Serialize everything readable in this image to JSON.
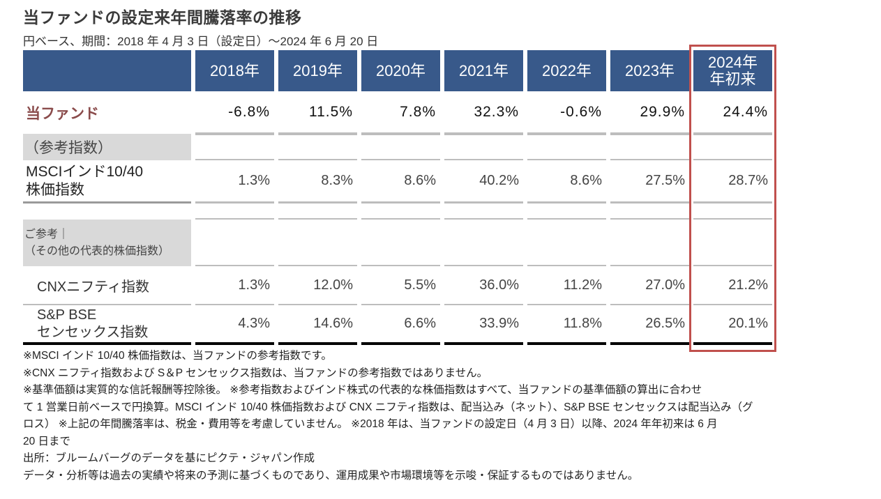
{
  "title": "当ファンドの設定来年間騰落率の推移",
  "subtitle": "円ベース、期間：2018 年 4 月 3 日（設定日）～2024 年 6 月 20 日",
  "table": {
    "columns": [
      "2018年",
      "2019年",
      "2020年",
      "2021年",
      "2022年",
      "2023年",
      "2024年\n年初来"
    ],
    "column_lines": [
      [
        "2018年"
      ],
      [
        "2019年"
      ],
      [
        "2020年"
      ],
      [
        "2021年"
      ],
      [
        "2022年"
      ],
      [
        "2023年"
      ],
      [
        "2024年",
        "年初来"
      ]
    ],
    "fund": {
      "label": "当ファンド",
      "values": [
        "-6.8%",
        "11.5%",
        "7.8%",
        "32.3%",
        "-0.6%",
        "29.9%",
        "24.4%"
      ]
    },
    "reference_section_label": "（参考指数）",
    "msci": {
      "label_lines": [
        "MSCIインド10/40",
        "株価指数"
      ],
      "values": [
        "1.3%",
        "8.3%",
        "8.6%",
        "40.2%",
        "8.6%",
        "27.5%",
        "28.7%"
      ]
    },
    "other_section_label_lines": [
      "ご参考｜",
      "（その他の代表的株価指数）"
    ],
    "cnx": {
      "label": "CNXニフティ指数",
      "values": [
        "1.3%",
        "12.0%",
        "5.5%",
        "36.0%",
        "11.2%",
        "27.0%",
        "21.2%"
      ]
    },
    "sensex": {
      "label_lines": [
        "S&P BSE",
        "センセックス指数"
      ],
      "values": [
        "4.3%",
        "14.6%",
        "6.6%",
        "33.9%",
        "11.8%",
        "26.5%",
        "20.1%"
      ]
    },
    "highlight_color": "#c0504d",
    "header_color": "#38598a",
    "fund_label_color": "#8a4b4b"
  },
  "notes": [
    "※MSCI インド 10/40 株価指数は、当ファンドの参考指数です。",
    "※CNX ニフティ指数および S＆P センセックス指数は、当ファンドの参考指数ではありません。",
    "※基準価額は実質的な信託報酬等控除後。 ※参考指数およびインド株式の代表的な株価指数はすべて、当ファンドの基準価額の算出に合わせ",
    "て 1 営業日前ベースで円換算。MSCI インド 10/40 株価指数および CNX ニフティ指数は、配当込み（ネット）、S&P BSE センセックスは配当込み（グ",
    "ロス） ※上記の年間騰落率は、税金・費用等を考慮していません。 ※2018 年は、当ファンドの設定日（4 月 3 日）以降、2024 年年初来は 6 月",
    "20 日まで",
    "出所：ブルームバーグのデータを基にピクテ・ジャパン作成",
    "データ・分析等は過去の実績や将来の予測に基づくものであり、運用成果や市場環境等を示唆・保証するものではありません。"
  ]
}
